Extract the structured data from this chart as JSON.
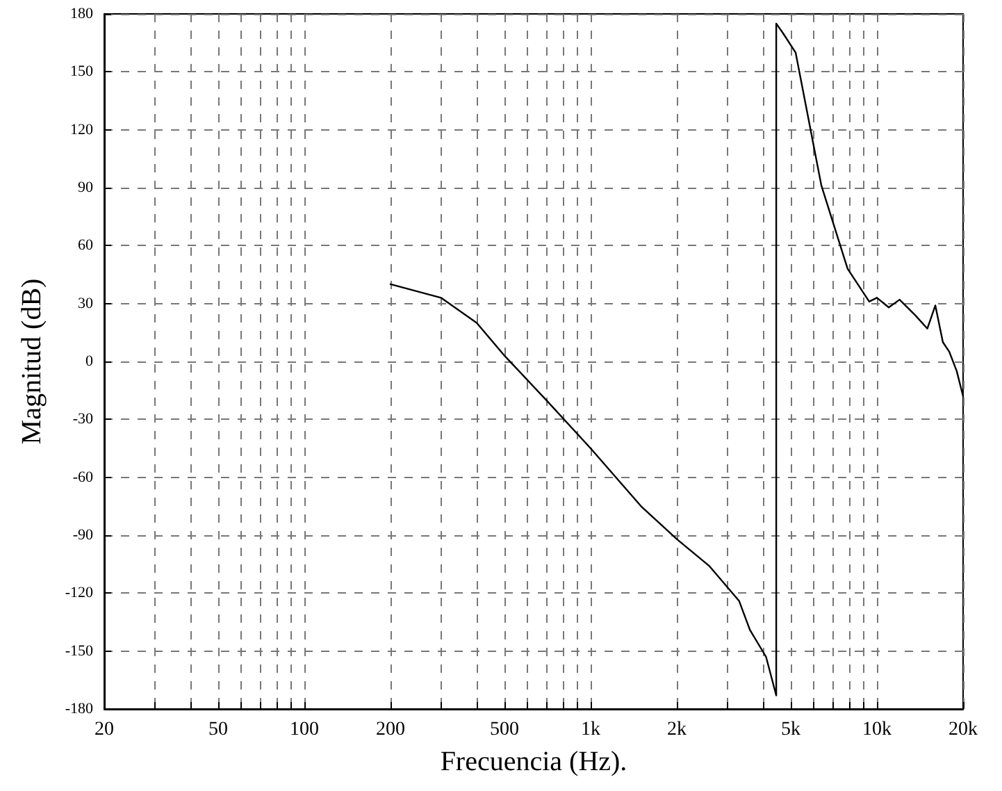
{
  "chart_data": {
    "type": "line",
    "xlabel": "Frecuencia (Hz).",
    "ylabel": "Magnitud (dB)",
    "log": "x",
    "xlim": [
      20,
      20000
    ],
    "ylim": [
      -180,
      180
    ],
    "xticks": [
      20,
      {
        "value": 30,
        "label": null
      },
      {
        "value": 40,
        "label": null
      },
      50,
      {
        "value": 60,
        "label": null
      },
      {
        "value": 70,
        "label": null
      },
      {
        "value": 80,
        "label": null
      },
      {
        "value": 90,
        "label": null
      },
      100,
      200,
      {
        "value": 300,
        "label": null
      },
      {
        "value": 400,
        "label": null
      },
      500,
      {
        "value": 600,
        "label": null
      },
      {
        "value": 700,
        "label": null
      },
      {
        "value": 800,
        "label": null
      },
      {
        "value": 900,
        "label": null
      },
      {
        "value": 1000,
        "label": "1k"
      },
      {
        "value": 2000,
        "label": "2k"
      },
      {
        "value": 3000,
        "label": null
      },
      {
        "value": 4000,
        "label": null
      },
      {
        "value": 5000,
        "label": "5k"
      },
      {
        "value": 6000,
        "label": null
      },
      {
        "value": 7000,
        "label": null
      },
      {
        "value": 8000,
        "label": null
      },
      {
        "value": 9000,
        "label": null
      },
      {
        "value": 10000,
        "label": "10k"
      },
      {
        "value": 20000,
        "label": "20k"
      }
    ],
    "yticks": [
      -180,
      -150,
      -120,
      -90,
      -60,
      -30,
      0,
      30,
      60,
      90,
      120,
      150,
      180
    ],
    "grid": true,
    "marker": "none",
    "line_style": "solid",
    "series": [
      {
        "color": "#000000",
        "x": [
          200,
          300,
          400,
          500,
          700,
          1000,
          1500,
          2000,
          2600,
          3300,
          3600,
          4100,
          4450,
          4450,
          4700,
          5200,
          6400,
          7900,
          9400,
          10000,
          11000,
          12000,
          13600,
          15000,
          16000,
          17000,
          17900,
          19000,
          20000
        ],
        "values": [
          40,
          33,
          20,
          3,
          -20,
          -45,
          -75,
          -92,
          -106,
          -124,
          -139,
          -153,
          -173,
          175,
          170,
          160,
          91,
          48,
          31,
          33,
          28,
          32,
          24,
          17,
          29,
          10,
          5,
          -5,
          -18
        ]
      }
    ]
  }
}
